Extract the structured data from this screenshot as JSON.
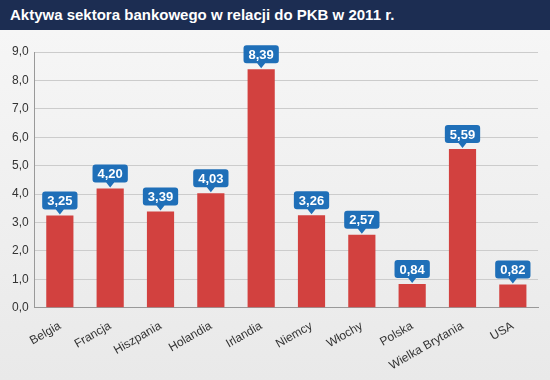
{
  "chart_data": {
    "type": "bar",
    "title": "Aktywa sektora bankowego w relacji do PKB w 2011 r.",
    "categories": [
      "Belgia",
      "Francja",
      "Hiszpania",
      "Holandia",
      "Irlandia",
      "Niemcy",
      "Włochy",
      "Polska",
      "Wielka Brytania",
      "USA"
    ],
    "values": [
      3.25,
      4.2,
      3.39,
      4.03,
      8.39,
      3.26,
      2.57,
      0.84,
      5.59,
      0.82
    ],
    "value_labels": [
      "3,25",
      "4,20",
      "3,39",
      "4,03",
      "8,39",
      "3,26",
      "2,57",
      "0,84",
      "5,59",
      "0,82"
    ],
    "color": "#d2413f",
    "ylim": [
      0,
      9
    ],
    "yticks": [
      {
        "value": 0,
        "label": "0,0"
      },
      {
        "value": 1,
        "label": "1,0"
      },
      {
        "value": 2,
        "label": "2,0"
      },
      {
        "value": 3,
        "label": "3,0"
      },
      {
        "value": 4,
        "label": "4,0"
      },
      {
        "value": 5,
        "label": "5,0"
      },
      {
        "value": 6,
        "label": "6,0"
      },
      {
        "value": 7,
        "label": "7,0"
      },
      {
        "value": 8,
        "label": "8,0"
      },
      {
        "value": 9,
        "label": "9,0"
      }
    ],
    "grid": true,
    "data_labels": true
  }
}
